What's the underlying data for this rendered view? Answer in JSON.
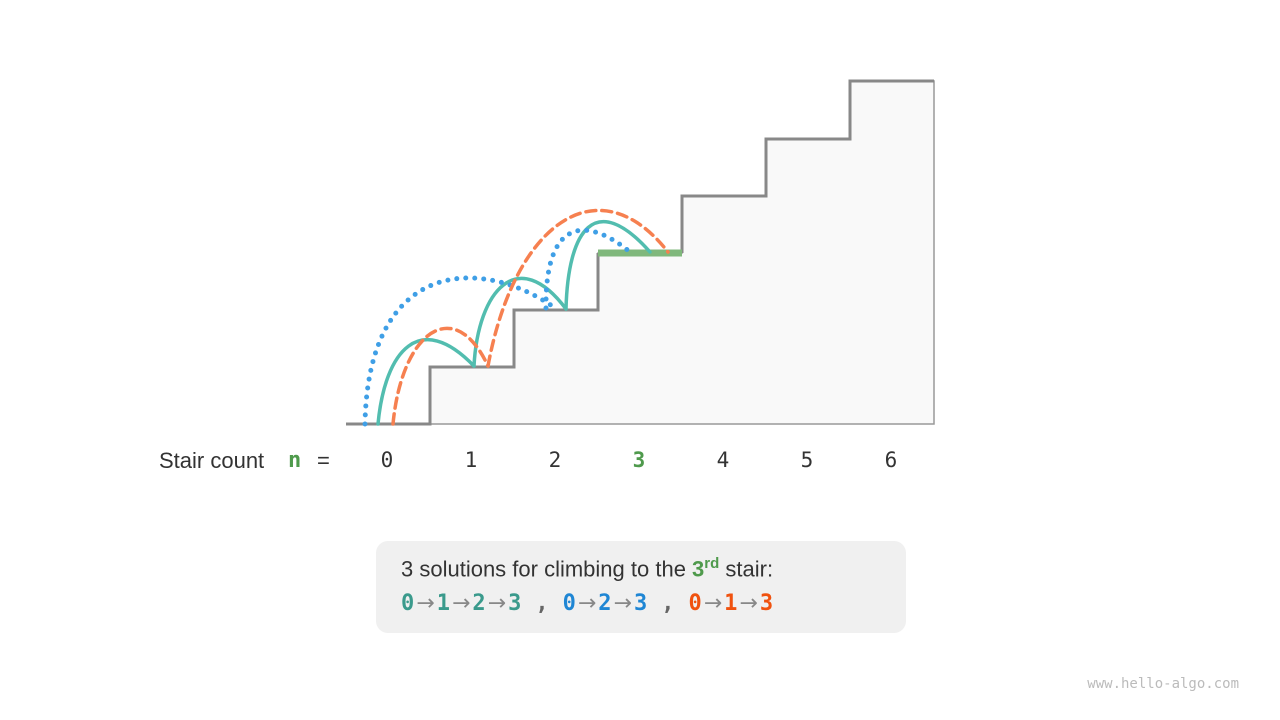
{
  "stair_labels": [
    "0",
    "1",
    "2",
    "3",
    "4",
    "5",
    "6"
  ],
  "highlight_stair": "3",
  "stair_count_label": "Stair count",
  "n_symbol": "n",
  "equals": "=",
  "caption": {
    "prefix": "3 solutions for climbing to the ",
    "stair": "3",
    "suffix_sup": "rd",
    "after": " stair:"
  },
  "solutions": [
    {
      "steps": [
        "0",
        "1",
        "2",
        "3"
      ],
      "color": "#3a9a8c",
      "line_style": "solid"
    },
    {
      "steps": [
        "0",
        "2",
        "3"
      ],
      "color": "#1f86d4",
      "line_style": "dotted"
    },
    {
      "steps": [
        "0",
        "1",
        "3"
      ],
      "color": "#f0520f",
      "line_style": "dashed"
    }
  ],
  "arrow": "→",
  "separator": ",",
  "colors": {
    "teal": "#52bdaf",
    "blue": "#3f9fe6",
    "orange": "#f68050",
    "green": "#80b87c",
    "highlight_text": "#4f9a4c"
  },
  "watermark": "www.hello-algo.com"
}
